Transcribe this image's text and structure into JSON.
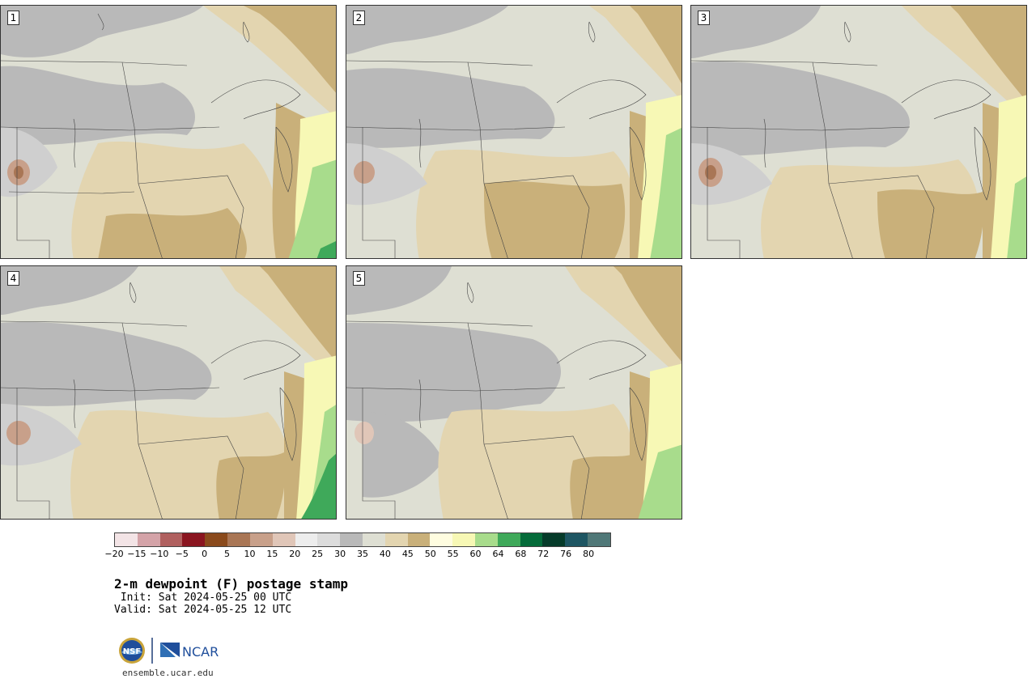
{
  "panels": [
    {
      "id": "1",
      "label": "1"
    },
    {
      "id": "2",
      "label": "2"
    },
    {
      "id": "3",
      "label": "3"
    },
    {
      "id": "4",
      "label": "4"
    },
    {
      "id": "5",
      "label": "5"
    }
  ],
  "colorbar": {
    "colors": [
      "#f3e4e6",
      "#d4a3a8",
      "#b0605f",
      "#8a1520",
      "#8a4a1c",
      "#a97655",
      "#c8a08a",
      "#e0c6b8",
      "#ededed",
      "#dcdcdc",
      "#b9b9b9",
      "#dedfd3",
      "#e3d5b0",
      "#c9b07a",
      "#fffde0",
      "#f7f8b5",
      "#a8dc8c",
      "#3fa95a",
      "#056b3a",
      "#063b2a",
      "#1e5663",
      "#507878"
    ],
    "tick_labels": [
      "−20",
      "−15",
      "−10",
      "−5",
      "0",
      "5",
      "10",
      "15",
      "20",
      "25",
      "30",
      "35",
      "40",
      "45",
      "50",
      "55",
      "60",
      "64",
      "68",
      "72",
      "76",
      "80"
    ]
  },
  "title": "2-m dewpoint (F) postage stamp",
  "init": " Init: Sat 2024-05-25 00 UTC",
  "valid": "Valid: Sat 2024-05-25 12 UTC",
  "logos": {
    "left": "NSF",
    "right": "NCAR"
  },
  "website": "ensemble.ucar.edu"
}
